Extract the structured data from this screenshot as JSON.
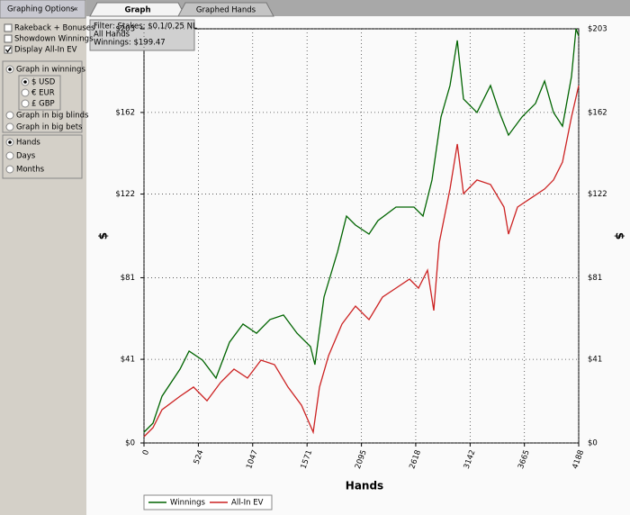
{
  "sidebar": {
    "title": "Graphing Options",
    "collapse": "«",
    "checkboxes": [
      {
        "label": "Rakeback + Bonuses",
        "checked": false
      },
      {
        "label": "Showdown Winnings",
        "checked": false
      },
      {
        "label": "Display All-In EV",
        "checked": true
      }
    ],
    "unit_options": [
      {
        "label": "Graph in winnings",
        "selected": true
      },
      {
        "label": "Graph in big blinds",
        "selected": false
      },
      {
        "label": "Graph in big bets",
        "selected": false
      }
    ],
    "currency_options": [
      {
        "label": "$ USD",
        "selected": true
      },
      {
        "label": "€ EUR",
        "selected": false
      },
      {
        "label": "£ GBP",
        "selected": false
      }
    ],
    "period_options": [
      {
        "label": "Hands",
        "selected": true
      },
      {
        "label": "Days",
        "selected": false
      },
      {
        "label": "Months",
        "selected": false
      }
    ]
  },
  "tabs": [
    {
      "label": "Graph",
      "active": true
    },
    {
      "label": "Graphed Hands",
      "active": false
    }
  ],
  "filter_box": [
    "Filter: Stakes: $0.1/0.25 NL",
    "All Hands",
    "Winnings: $199.47"
  ],
  "chart_data": {
    "type": "line",
    "x_label": "Hands",
    "y_label": "$",
    "xlim": [
      0,
      4188
    ],
    "xticks": [
      0,
      524,
      1047,
      1571,
      2095,
      2618,
      3142,
      3665,
      4188
    ],
    "ylim": [
      0,
      203
    ],
    "yticks": [
      {
        "value": 0,
        "label": "$0"
      },
      {
        "value": 41,
        "label": "$41"
      },
      {
        "value": 81,
        "label": "$81"
      },
      {
        "value": 122,
        "label": "$122"
      },
      {
        "value": 162,
        "label": "$162"
      },
      {
        "value": 203,
        "label": "$203"
      }
    ],
    "grid": true,
    "series": [
      {
        "name": "Winnings",
        "color": "#006400",
        "x": [
          0,
          87,
          173,
          347,
          434,
          564,
          694,
          824,
          954,
          1084,
          1214,
          1344,
          1474,
          1604,
          1647,
          1734,
          1864,
          1951,
          2038,
          2168,
          2254,
          2428,
          2601,
          2688,
          2775,
          2861,
          2948,
          3018,
          3078,
          3208,
          3338,
          3425,
          3512,
          3642,
          3772,
          3859,
          3945,
          4032,
          4119,
          4162,
          4188
        ],
        "values": [
          5.3,
          9.7,
          22.9,
          36.2,
          45.0,
          40.6,
          31.8,
          49.4,
          58.3,
          53.8,
          60.5,
          62.7,
          53.8,
          47.2,
          38.4,
          71.5,
          93.6,
          111.2,
          106.8,
          102.4,
          109.0,
          115.6,
          115.6,
          111.2,
          128.9,
          159.8,
          175.2,
          197.3,
          168.6,
          162.0,
          175.2,
          162.0,
          150.9,
          159.8,
          166.4,
          177.4,
          162.0,
          155.3,
          179.6,
          203.0,
          199.47
        ]
      },
      {
        "name": "All-In EV",
        "color": "#cc2222",
        "x": [
          0,
          87,
          173,
          347,
          477,
          607,
          737,
          867,
          997,
          1127,
          1257,
          1387,
          1517,
          1630,
          1691,
          1778,
          1908,
          2038,
          2168,
          2298,
          2428,
          2558,
          2645,
          2731,
          2792,
          2844,
          2948,
          3018,
          3078,
          3208,
          3338,
          3468,
          3512,
          3598,
          3728,
          3859,
          3945,
          4032,
          4119,
          4188
        ],
        "values": [
          3.1,
          7.5,
          16.3,
          22.9,
          27.4,
          20.7,
          29.6,
          36.2,
          31.8,
          40.6,
          38.4,
          27.4,
          18.5,
          5.3,
          27.4,
          42.8,
          58.3,
          67.1,
          60.5,
          71.5,
          75.9,
          80.3,
          75.9,
          84.7,
          64.9,
          98.0,
          124.5,
          146.5,
          122.2,
          128.9,
          126.7,
          115.6,
          102.4,
          115.6,
          120.0,
          124.5,
          128.9,
          137.7,
          159.8,
          175.2
        ]
      }
    ]
  }
}
